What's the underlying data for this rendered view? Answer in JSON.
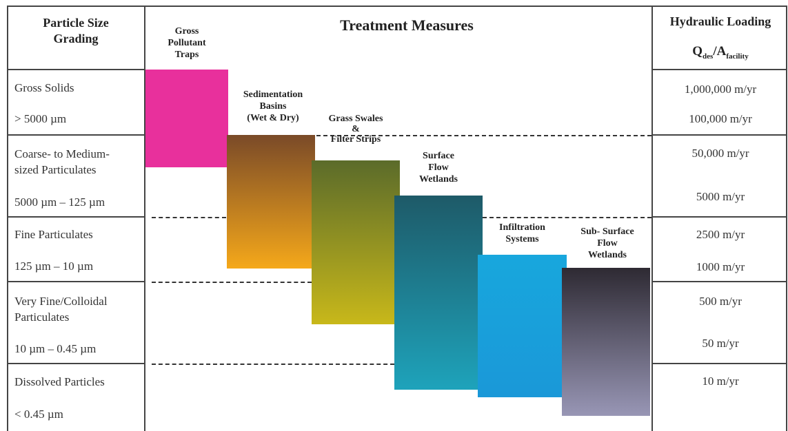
{
  "header": {
    "grading_line1": "Particle Size",
    "grading_line2": "Grading",
    "treatment": "Treatment Measures",
    "loading_title": "Hydraulic Loading",
    "loading_Q": "Q",
    "loading_des": "des",
    "loading_slash_A": "/A",
    "loading_facility": "facility"
  },
  "grading": [
    {
      "name": "Gross Solids",
      "range": "> 5000 µm"
    },
    {
      "name_line1": "Coarse- to Medium-",
      "name_line2": "sized Particulates",
      "range": "5000 µm – 125 µm"
    },
    {
      "name": "Fine Particulates",
      "range": "125 µm – 10 µm"
    },
    {
      "name_line1": "Very Fine/Colloidal",
      "name_line2": "Particulates",
      "range": "10 µm – 0.45 µm"
    },
    {
      "name": "Dissolved Particles",
      "range": "< 0.45 µm"
    }
  ],
  "measures": {
    "gpt": {
      "l1": "Gross",
      "l2": "Pollutant",
      "l3": "Traps",
      "color": "#e8309c"
    },
    "sed": {
      "l1": "Sedimentation",
      "l2": "Basins",
      "l3": "(Wet & Dry)",
      "color_top": "#7a4a28",
      "color_bottom": "#f5a81a"
    },
    "swale": {
      "l1": "Grass Swales",
      "l2": "&",
      "l3": "Filter Strips",
      "color_top": "#5b6b2a",
      "color_bottom": "#c8b81a"
    },
    "sfw": {
      "l1": "Surface",
      "l2": "Flow",
      "l3": "Wetlands",
      "color_top": "#1e5a68",
      "color_bottom": "#1ea3bb"
    },
    "inf": {
      "l1": "Infiltration",
      "l2": "Systems",
      "color_top": "#18a7dd",
      "color_bottom": "#1a98d8"
    },
    "ssfw": {
      "l1": "Sub- Surface",
      "l2": "Flow",
      "l3": "Wetlands",
      "color_top": "#2e2a33",
      "color_bottom": "#9896b5"
    }
  },
  "loading": [
    "1,000,000 m/yr",
    "100,000 m/yr",
    "50,000 m/yr",
    "5000 m/yr",
    "2500 m/yr",
    "1000 m/yr",
    "500 m/yr",
    "50 m/yr",
    "10 m/yr"
  ]
}
